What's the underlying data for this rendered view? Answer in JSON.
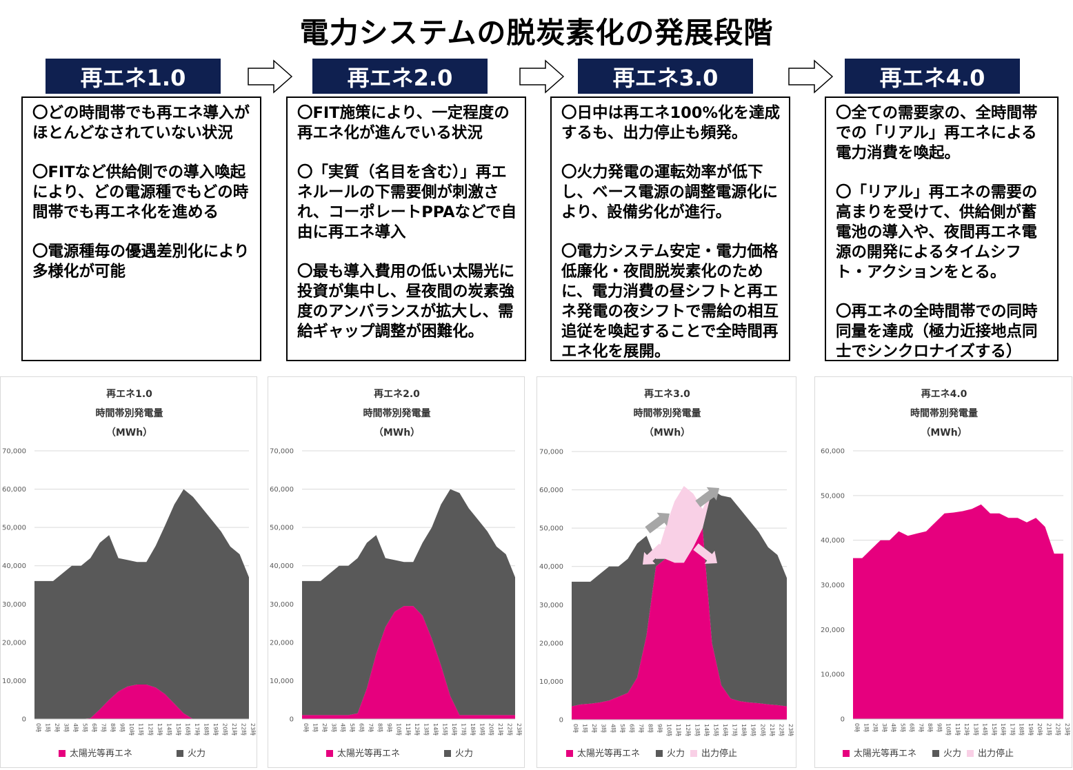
{
  "title": "電力システムの脱炭素化の発展段階",
  "stages": [
    {
      "label": "再エネ1.0",
      "paragraphs": [
        "〇どの時間帯でも再エネ導入がほとんどなされていない状況",
        "〇FITなど供給側での導入喚起により、どの電源種でもどの時間帯でも再エネ化を進める",
        "〇電源種毎の優遇差別化により多様化が可能"
      ]
    },
    {
      "label": "再エネ2.0",
      "paragraphs": [
        "〇FIT施策により、一定程度の再エネ化が進んでいる状況",
        "〇「実質（名目を含む）」再エネルールの下需要側が刺激され、コーポレートPPAなどで自由に再エネ導入",
        "〇最も導入費用の低い太陽光に投資が集中し、昼夜間の炭素強度のアンバランスが拡大し、需給ギャップ調整が困難化。"
      ]
    },
    {
      "label": "再エネ3.0",
      "paragraphs": [
        "〇日中は再エネ100%化を達成するも、出力停止も頻発。",
        "〇火力発電の運転効率が低下し、ベース電源の調整電源化により、設備劣化が進行。",
        "〇電力システム安定・電力価格低廉化・夜間脱炭素化のために、電力消費の昼シフトと再エネ発電の夜シフトで需給の相互追従を喚起することで全時間再エネ化を展開。"
      ]
    },
    {
      "label": "再エネ4.0",
      "paragraphs": [
        "〇全ての需要家の、全時間帯での「リアル」再エネによる電力消費を喚起。",
        "〇「リアル」再エネの需要の高まりを受けて、供給側が蓄電池の導入や、夜間再エネ電源の開発によるタイムシフト・アクションをとる。",
        "〇再エネの全時間帯での同時同量を達成（極力近接地点同士でシンクロナイズする）"
      ]
    }
  ],
  "colors": {
    "header_bg": "#0f2050",
    "renewable": "#e6007e",
    "thermal": "#595959",
    "curtailment": "#f9d0e6",
    "shift_arrow": "#a6a6a6"
  },
  "chart_data": [
    {
      "type": "area",
      "stacked": true,
      "title": [
        "再エネ1.0",
        "時間帯別発電量",
        "（MWh）"
      ],
      "categories": [
        "0時",
        "1時",
        "2時",
        "3時",
        "4時",
        "5時",
        "6時",
        "7時",
        "8時",
        "9時",
        "10時",
        "11時",
        "12時",
        "13時",
        "14時",
        "15時",
        "16時",
        "17時",
        "18時",
        "19時",
        "20時",
        "21時",
        "22時",
        "23時"
      ],
      "ylim": [
        0,
        70000
      ],
      "yticks": [
        "0",
        "10,000",
        "20,000",
        "30,000",
        "40,000",
        "50,000",
        "60,000",
        "70,000"
      ],
      "grid": true,
      "legend_position": "bottom",
      "series": [
        {
          "name": "太陽光等再エネ",
          "color": "#e6007e",
          "values": [
            0,
            0,
            0,
            0,
            0,
            0,
            200,
            2500,
            5000,
            7200,
            8500,
            9000,
            9000,
            8200,
            6500,
            4000,
            1500,
            0,
            0,
            0,
            0,
            0,
            0,
            0
          ]
        },
        {
          "name": "火力",
          "color": "#595959",
          "values": [
            36000,
            36000,
            36000,
            38000,
            40000,
            40000,
            41800,
            43500,
            43000,
            34800,
            33000,
            32000,
            32000,
            37000,
            44000,
            52000,
            58500,
            58000,
            55000,
            52000,
            49000,
            45000,
            43000,
            37000
          ]
        }
      ]
    },
    {
      "type": "area",
      "stacked": true,
      "title": [
        "再エネ2.0",
        "時間帯別発電量",
        "（MWh）"
      ],
      "categories": [
        "0時",
        "1時",
        "2時",
        "3時",
        "4時",
        "5時",
        "6時",
        "7時",
        "8時",
        "9時",
        "10時",
        "11時",
        "12時",
        "13時",
        "14時",
        "15時",
        "16時",
        "17時",
        "18時",
        "19時",
        "20時",
        "21時",
        "22時",
        "23時"
      ],
      "ylim": [
        0,
        70000
      ],
      "yticks": [
        "0",
        "10,000",
        "20,000",
        "30,000",
        "40,000",
        "50,000",
        "60,000",
        "70,000"
      ],
      "grid": true,
      "legend_position": "bottom",
      "series": [
        {
          "name": "太陽光等再エネ",
          "color": "#e6007e",
          "values": [
            1000,
            1000,
            1000,
            1000,
            1000,
            1000,
            1500,
            8000,
            17000,
            24000,
            28000,
            29500,
            29500,
            27000,
            21000,
            14000,
            6000,
            1000,
            1000,
            1000,
            1000,
            1000,
            1000,
            1000
          ]
        },
        {
          "name": "火力",
          "color": "#595959",
          "values": [
            35000,
            35000,
            35000,
            37000,
            39000,
            39000,
            40500,
            38000,
            31000,
            18000,
            13500,
            11500,
            11500,
            19000,
            29000,
            42000,
            54000,
            58000,
            54000,
            51000,
            48000,
            44000,
            42000,
            36000
          ]
        }
      ]
    },
    {
      "type": "area",
      "stacked": true,
      "title": [
        "再エネ3.0",
        "時間帯別発電量",
        "（MWh）"
      ],
      "categories": [
        "0時",
        "1時",
        "2時",
        "3時",
        "4時",
        "5時",
        "6時",
        "7時",
        "8時",
        "9時",
        "10時",
        "11時",
        "12時",
        "13時",
        "14時",
        "15時",
        "16時",
        "17時",
        "18時",
        "19時",
        "20時",
        "21時",
        "22時",
        "23時"
      ],
      "ylim": [
        0,
        70000
      ],
      "yticks": [
        "0",
        "10,000",
        "20,000",
        "30,000",
        "40,000",
        "50,000",
        "60,000",
        "70,000"
      ],
      "grid": true,
      "legend_position": "bottom",
      "series": [
        {
          "name": "太陽光等再エネ",
          "color": "#e6007e",
          "values": [
            3500,
            4000,
            4200,
            4500,
            5000,
            6000,
            7000,
            11000,
            22000,
            40000,
            42000,
            41000,
            41000,
            45000,
            50000,
            20000,
            9000,
            5500,
            4800,
            4500,
            4300,
            4000,
            3800,
            3500
          ]
        },
        {
          "name": "火力",
          "color": "#595959",
          "values": [
            32500,
            32000,
            31800,
            33500,
            35000,
            34000,
            35000,
            35000,
            26000,
            2000,
            0,
            0,
            0,
            0,
            0,
            40000,
            49500,
            52500,
            50200,
            47500,
            44700,
            41000,
            39200,
            33500
          ]
        },
        {
          "name": "出力停止",
          "color": "#f9d0e6",
          "values": [
            0,
            0,
            0,
            0,
            0,
            0,
            0,
            0,
            0,
            0,
            8000,
            16000,
            20000,
            14000,
            5000,
            0,
            0,
            0,
            0,
            0,
            0,
            0,
            0,
            0
          ]
        }
      ]
    },
    {
      "type": "area",
      "stacked": true,
      "title": [
        "再エネ4.0",
        "時間帯別発電量",
        "（MWh）"
      ],
      "categories": [
        "0時",
        "1時",
        "2時",
        "3時",
        "4時",
        "5時",
        "6時",
        "7時",
        "8時",
        "9時",
        "10時",
        "11時",
        "12時",
        "13時",
        "14時",
        "15時",
        "16時",
        "17時",
        "18時",
        "19時",
        "20時",
        "21時",
        "22時",
        "23時"
      ],
      "ylim": [
        0,
        60000
      ],
      "yticks": [
        "0",
        "10,000",
        "20,000",
        "30,000",
        "40,000",
        "50,000",
        "60,000"
      ],
      "grid": true,
      "legend_position": "bottom",
      "series": [
        {
          "name": "太陽光等再エネ",
          "color": "#e6007e",
          "values": [
            36000,
            36000,
            38000,
            40000,
            40000,
            42000,
            41000,
            41500,
            42000,
            44000,
            46000,
            46200,
            46500,
            47000,
            48000,
            46000,
            46000,
            45000,
            45000,
            44000,
            45000,
            43000,
            37000,
            37000
          ]
        },
        {
          "name": "火力",
          "color": "#595959",
          "values": [
            0,
            0,
            0,
            0,
            0,
            0,
            0,
            0,
            0,
            0,
            0,
            0,
            0,
            0,
            0,
            0,
            0,
            0,
            0,
            0,
            0,
            0,
            0,
            0
          ]
        },
        {
          "name": "出力停止",
          "color": "#f9d0e6",
          "values": [
            0,
            0,
            0,
            0,
            0,
            0,
            0,
            0,
            0,
            0,
            0,
            0,
            0,
            0,
            0,
            0,
            0,
            0,
            0,
            0,
            0,
            0,
            0,
            0
          ]
        }
      ]
    }
  ]
}
